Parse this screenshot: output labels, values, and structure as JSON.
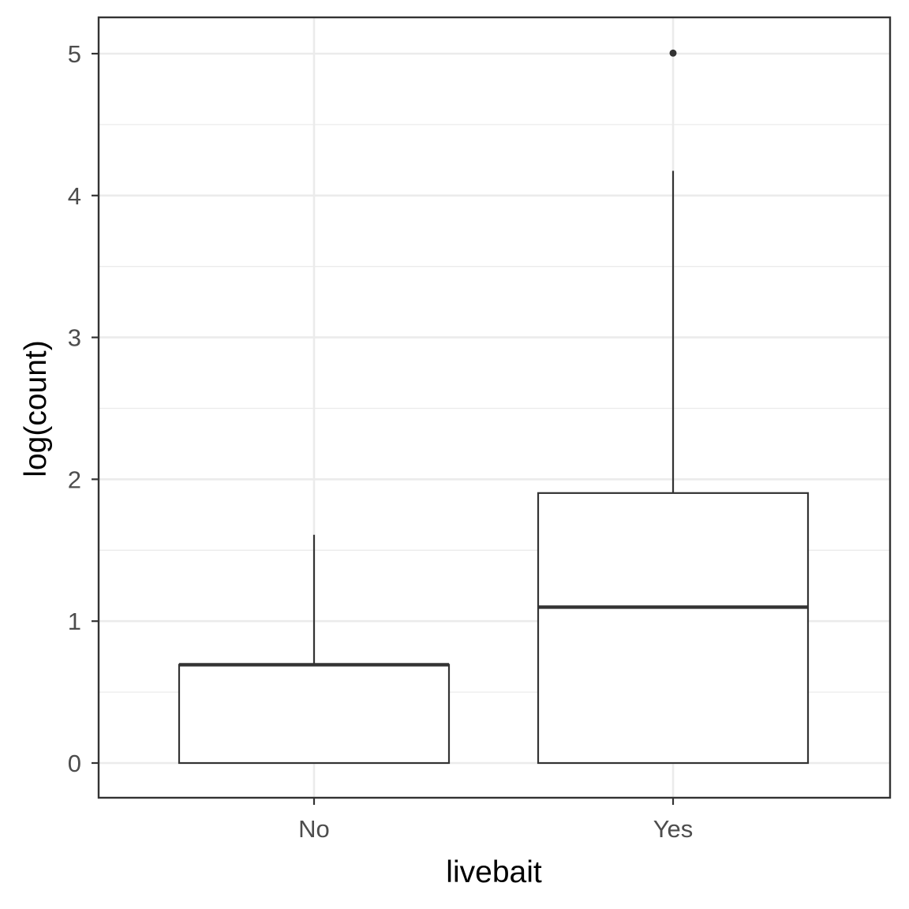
{
  "chart_data": {
    "type": "boxplot",
    "xlabel": "livebait",
    "ylabel": "log(count)",
    "categories": [
      "No",
      "Yes"
    ],
    "ylim": [
      -0.24,
      5.24
    ],
    "yticks": [
      0,
      1,
      2,
      3,
      4,
      5
    ],
    "ytick_labels": [
      "0",
      "1",
      "2",
      "3",
      "4",
      "5"
    ],
    "ytick_minor": [
      0.5,
      1.5,
      2.5,
      3.5,
      4.5
    ],
    "grid": true,
    "boxes": [
      {
        "category": "No",
        "lower_whisker": 0,
        "q1": 0,
        "median": 0.693,
        "q3": 0.693,
        "upper_whisker": 1.609,
        "outliers": []
      },
      {
        "category": "Yes",
        "lower_whisker": 0,
        "q1": 0,
        "median": 1.099,
        "q3": 1.903,
        "upper_whisker": 4.174,
        "outliers": [
          5.004
        ]
      }
    ]
  }
}
